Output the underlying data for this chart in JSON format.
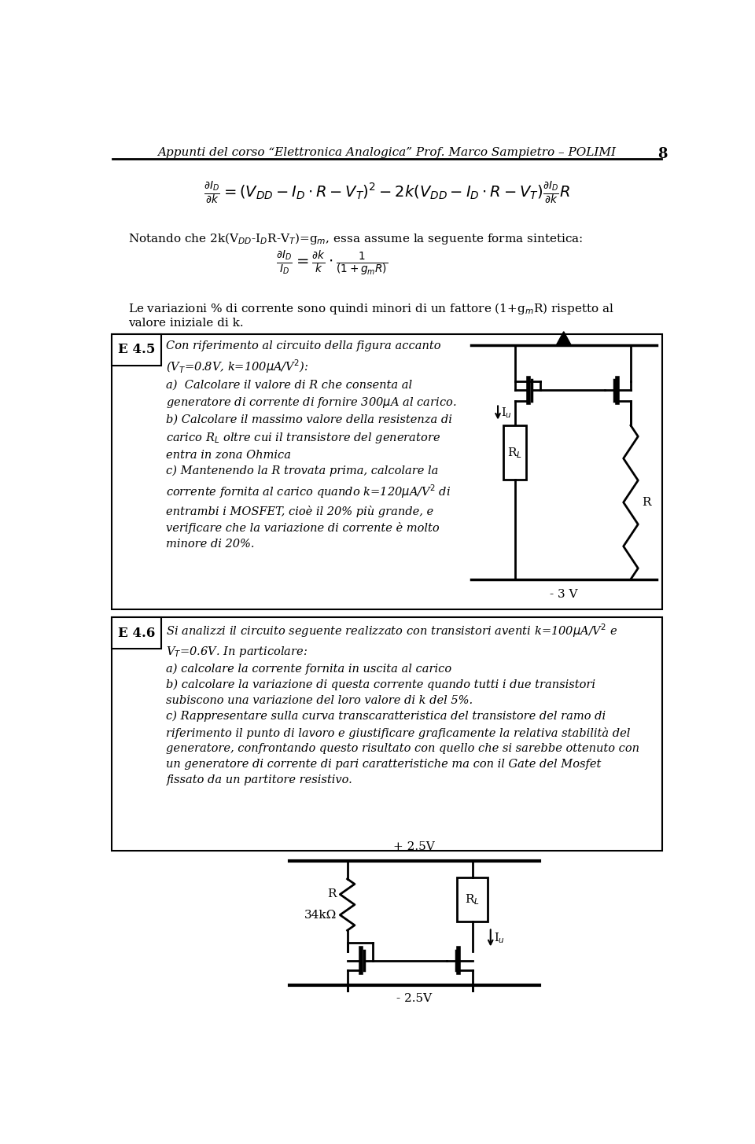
{
  "header_text": "Appunti del corso “Elettronica Analogica” Prof. Marco Sampietro – POLIMI",
  "page_number": "8",
  "bg_color": "#ffffff",
  "text_color": "#000000",
  "header_fontsize": 11,
  "body_fontsize": 10.5,
  "label_E45": "E 4.5",
  "label_E46": "E 4.6",
  "minus3v": "- 3 V",
  "plus25v": "+ 2.5V",
  "minus25v": "- 2.5V",
  "r_label": "R",
  "r_value": "34kΩ",
  "rl_label": "R_L"
}
